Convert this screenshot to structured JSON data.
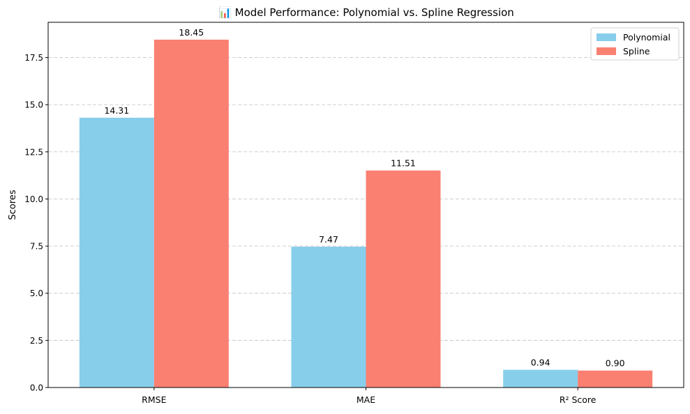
{
  "chart_data": {
    "type": "bar",
    "title": "📊 Model Performance: Polynomial vs. Spline Regression",
    "xlabel": "",
    "ylabel": "Scores",
    "categories": [
      "RMSE",
      "MAE",
      "R² Score"
    ],
    "series": [
      {
        "name": "Polynomial",
        "values": [
          14.31,
          7.47,
          0.94
        ],
        "color": "#87CEEB"
      },
      {
        "name": "Spline",
        "values": [
          18.45,
          11.51,
          0.9
        ],
        "color": "#FA8072"
      }
    ],
    "data_labels": [
      [
        "14.31",
        "7.47",
        "0.94"
      ],
      [
        "18.45",
        "11.51",
        "0.90"
      ]
    ],
    "ylim": [
      0,
      19.37
    ],
    "yticks": [
      0.0,
      2.5,
      5.0,
      7.5,
      10.0,
      12.5,
      15.0,
      17.5
    ],
    "ytick_labels": [
      "0.0",
      "2.5",
      "5.0",
      "7.5",
      "10.0",
      "12.5",
      "15.0",
      "17.5"
    ],
    "grid": "y-dashed",
    "legend_position": "top-right"
  }
}
